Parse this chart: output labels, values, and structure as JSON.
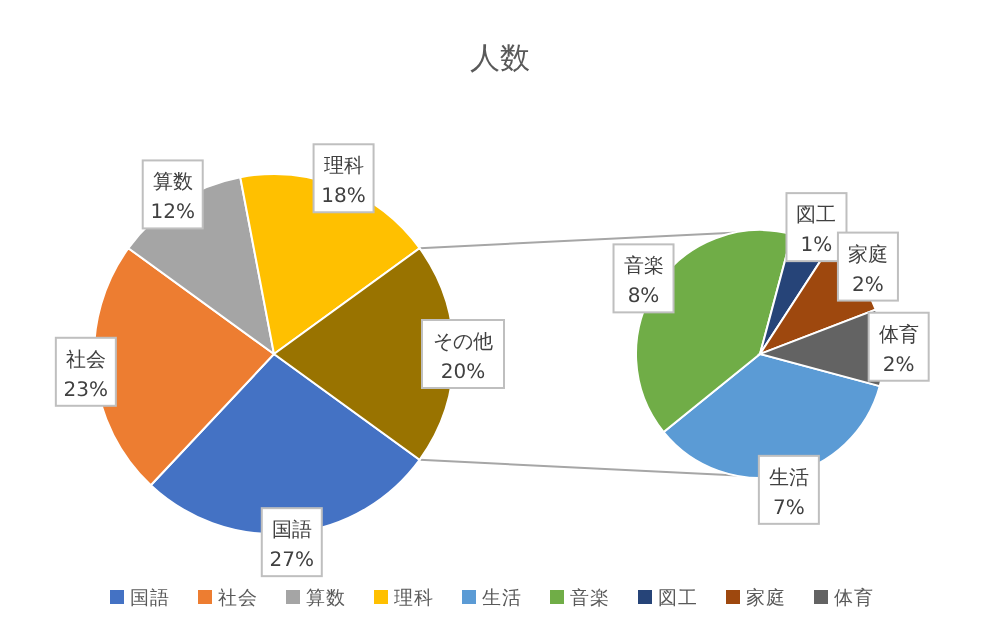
{
  "chart_data": [
    {
      "type": "pie",
      "title": "人数",
      "categories": [
        "国語",
        "社会",
        "算数",
        "理科",
        "その他"
      ],
      "values": [
        27,
        23,
        12,
        18,
        20
      ],
      "colors": [
        "#4472c4",
        "#ed7d31",
        "#a5a5a5",
        "#ffc000",
        "#997300"
      ],
      "value_labels": [
        "27%",
        "23%",
        "12%",
        "18%",
        "20%"
      ],
      "legend": "bottom"
    },
    {
      "type": "pie",
      "categories": [
        "生活",
        "音楽",
        "図工",
        "家庭",
        "体育"
      ],
      "values": [
        7,
        8,
        1,
        2,
        2
      ],
      "colors": [
        "#5b9bd5",
        "#70ad47",
        "#264478",
        "#9e480e",
        "#636363"
      ],
      "value_labels": [
        "7%",
        "8%",
        "1%",
        "2%",
        "2%"
      ],
      "legend": "bottom"
    }
  ]
}
